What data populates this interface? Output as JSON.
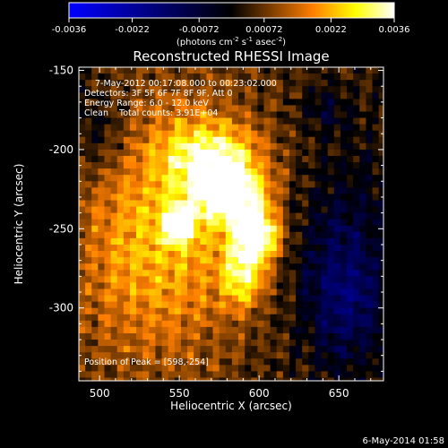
{
  "colorbar": {
    "ticks": [
      "-0.0036",
      "-0.0022",
      "-0.00072",
      "0.00072",
      "0.0022",
      "0.0036"
    ],
    "tick_values": [
      -0.0036,
      -0.0022,
      -0.00072,
      0.00072,
      0.0022,
      0.0036
    ],
    "unit_label": "(photons cm",
    "unit_exp1": "-2",
    "unit_mid1": " s",
    "unit_exp2": "-1",
    "unit_mid2": " asec",
    "unit_exp3": "-2",
    "unit_end": ")",
    "colors": [
      "#0000ff",
      "#000000",
      "#ff7f00",
      "#ffff00",
      "#ffffff"
    ]
  },
  "chart_data": {
    "type": "heatmap",
    "title": "Reconstructed RHESSI Image",
    "xlabel": "Heliocentric X (arcsec)",
    "ylabel": "Heliocentric Y (arcsec)",
    "xlim": [
      487,
      678
    ],
    "ylim": [
      -346,
      -148
    ],
    "xticks": [
      500,
      550,
      600,
      650
    ],
    "yticks": [
      -150,
      -200,
      -250,
      -300
    ],
    "value_range": [
      -0.0036,
      0.0036
    ],
    "peak": {
      "x": 598,
      "y": -254
    },
    "secondary_peak": {
      "x": 550,
      "y": -247
    },
    "annotations": [
      "7-May-2012 00:17:08.000 to 00:23:02.000",
      "Detectors: 3F 5F 6F 7F 8F 9F, Att 0",
      "Energy Range: 6.0 - 12.0 keV",
      "Clean    Total counts: 3.91E+04"
    ],
    "peak_label": "Position of Peak = [598,-254]"
  },
  "footer": {
    "timestamp": "6-May-2014 01:58"
  }
}
